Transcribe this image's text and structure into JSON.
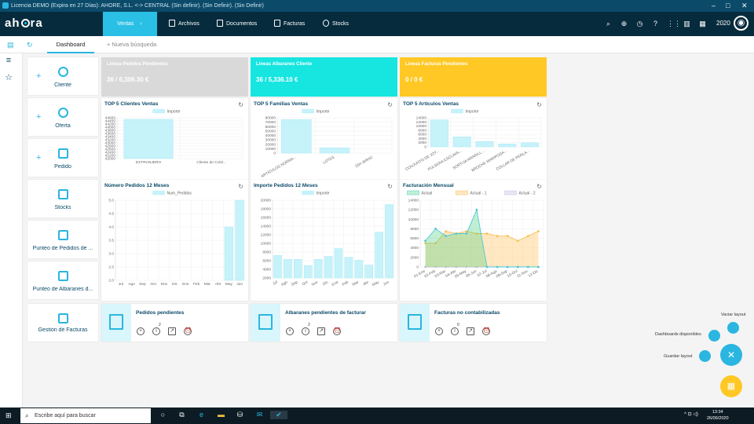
{
  "titlebar": {
    "text": "Licencia DEMO (Expira en 27 Días): AHORE, S.L. <-> CENTRAL (Sin definir). (Sin Definir). (Sin Definir)",
    "min": "–",
    "max": "□",
    "close": "✕"
  },
  "nav": {
    "logo_a": "ah",
    "logo_b": "ra",
    "tabs": [
      {
        "label": "Ventas",
        "arrow": "›"
      },
      {
        "label": "Archivos"
      },
      {
        "label": "Documentos"
      },
      {
        "label": "Facturas"
      },
      {
        "label": "Stocks"
      }
    ],
    "year": "2020"
  },
  "tabs": {
    "dashboard": "Dashboard",
    "new_search": "Nueva búsqueda"
  },
  "quick_actions": [
    {
      "label": "Cliente",
      "icon": "person-icon"
    },
    {
      "label": "Oferta",
      "icon": "percent-icon"
    },
    {
      "label": "Pedido",
      "icon": "clipboard-icon"
    },
    {
      "label": "Stocks",
      "icon": "warehouse-icon"
    },
    {
      "label": "Punteo de Pedidos de ...",
      "icon": "picking-icon"
    },
    {
      "label": "Punteo de Albaranes d...",
      "icon": "boxes-icon"
    },
    {
      "label": "Gestión de Facturas",
      "icon": "invoices-icon"
    }
  ],
  "stats": [
    {
      "title": "Lineas Pedidos Pendientes",
      "value": "36 / 6,306.30 €",
      "color": "#d9d9d9"
    },
    {
      "title": "Lineas Albaranes Cliente",
      "value": "36 / 5,336.10 €",
      "color": "#16e5e0"
    },
    {
      "title": "Lineas Facturas Pendientes",
      "value": "0 / 0 €",
      "color": "#ffc824"
    }
  ],
  "pending": [
    {
      "title": "Pedidos pendientes",
      "badge": "2"
    },
    {
      "title": "Albaranes pendientes de facturar",
      "badge": "2"
    },
    {
      "title": "Facturas no contabilizadas",
      "badge": "0"
    }
  ],
  "fab": {
    "vaciar": "Vaciar layout",
    "dashboards": "Dashboards disponibles",
    "guardar": "Guardar layout"
  },
  "taskbar": {
    "search_placeholder": "Escribe aquí para buscar",
    "time": "13:34",
    "date": "26/06/2020"
  },
  "chart_data": [
    {
      "id": "top5clientes",
      "type": "bar",
      "title": "TOP 5 Clientes Ventas",
      "series": [
        {
          "name": "Importe",
          "values": [
            44500,
            42000
          ]
        }
      ],
      "categories": [
        "EXTRANJERO",
        "Cliente de Créd..."
      ],
      "yticks": [
        "44600",
        "44400",
        "44200",
        "44000",
        "43800",
        "43600",
        "43400",
        "43200",
        "43000",
        "42800",
        "42600",
        "42400",
        "42200",
        "42000"
      ],
      "ylim": [
        42000,
        44600
      ]
    },
    {
      "id": "top5familias",
      "type": "bar",
      "title": "TOP 5 Familias Ventas",
      "series": [
        {
          "name": "Importe",
          "values": [
            76000,
            12000,
            0
          ]
        }
      ],
      "categories": [
        "ARTICULOS NORMA...",
        "LOTES",
        "(Sin definir)"
      ],
      "yticks": [
        "80000",
        "70000",
        "60000",
        "50000",
        "40000",
        "30000",
        "20000",
        "10000",
        "0"
      ],
      "ylim": [
        0,
        80000
      ]
    },
    {
      "id": "top5articulos",
      "type": "bar",
      "title": "TOP 5 Artículos Ventas",
      "series": [
        {
          "name": "Importe",
          "values": [
            13000,
            4800,
            2600,
            1400,
            2000
          ]
        }
      ],
      "categories": [
        "CONJUNTO DE JOY...",
        "PULSERA ESCLAVA...",
        "SORTIJA AMARILL...",
        "BROCHE MARIPOSA...",
        "COLLAR DE PERLA..."
      ],
      "yticks": [
        "14000",
        "12000",
        "10000",
        "8000",
        "6000",
        "4000",
        "2000",
        "0"
      ],
      "ylim": [
        0,
        14000
      ]
    },
    {
      "id": "numpedidos",
      "type": "bar",
      "title": "Número Pedidos 12 Meses",
      "series": [
        {
          "name": "Num_Pedidos",
          "values": [
            2,
            2,
            2,
            2,
            2,
            2,
            2,
            2,
            2,
            2,
            4,
            5
          ]
        }
      ],
      "categories": [
        "Jul",
        "Ago",
        "Sep",
        "Oct",
        "Nov",
        "Dic",
        "Ene",
        "Feb",
        "Mar",
        "Abr",
        "May",
        "Jun"
      ],
      "yticks": [
        "5.0",
        "4.5",
        "4.0",
        "3.5",
        "3.0",
        "2.5",
        "2.0"
      ],
      "ylim": [
        2,
        5
      ]
    },
    {
      "id": "importepedidos",
      "type": "bar",
      "title": "Importe Pedidos 12 Meses",
      "series": [
        {
          "name": "Importe",
          "values": [
            7200,
            6300,
            6300,
            4900,
            6300,
            7000,
            8800,
            6800,
            6100,
            5000,
            12600,
            19000
          ]
        }
      ],
      "categories": [
        "Jul",
        "Ago",
        "Sep",
        "Oct",
        "Nov",
        "Dic",
        "Ene",
        "Feb",
        "Mar",
        "Abr",
        "May",
        "Jun"
      ],
      "yticks": [
        "20000",
        "18000",
        "16000",
        "14000",
        "12000",
        "10000",
        "8000",
        "6000",
        "4000",
        "2000"
      ],
      "ylim": [
        2000,
        20000
      ]
    },
    {
      "id": "facturacion",
      "type": "area",
      "title": "Facturación Mensual",
      "categories": [
        "01-Ene",
        "02-Feb",
        "03-Mar",
        "04-Abr",
        "05-May",
        "06-Jun",
        "07-Jul",
        "08-Ago",
        "09-Sep",
        "10-Oct",
        "11-Nov",
        "12-Dic"
      ],
      "series": [
        {
          "name": "Actual",
          "values": [
            5500,
            8000,
            6500,
            7000,
            7000,
            12000,
            0,
            0,
            0,
            0,
            0,
            0
          ]
        },
        {
          "name": "Actual - 1",
          "values": [
            5000,
            5000,
            7500,
            7000,
            7500,
            7000,
            7000,
            6500,
            6500,
            5500,
            6500,
            7500
          ]
        },
        {
          "name": "Actual - 2",
          "values": [
            0,
            0,
            0,
            0,
            0,
            0,
            0,
            0,
            0,
            0,
            0,
            0
          ]
        }
      ],
      "yticks": [
        "14000",
        "12000",
        "10000",
        "8000",
        "6000",
        "4000",
        "2000",
        "0"
      ],
      "ylim": [
        0,
        14000
      ]
    }
  ]
}
